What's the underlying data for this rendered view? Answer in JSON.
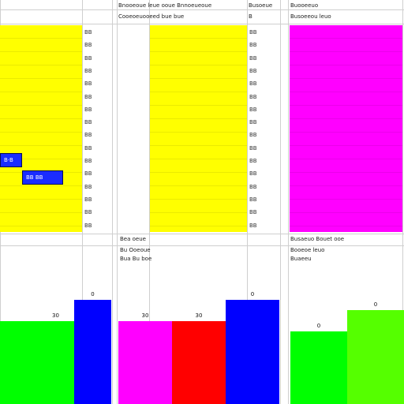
{
  "headers": {
    "col_b": "Bnooeoue leue ooue Bnnoeueoue",
    "col_b_sub": "Cooeoeuooeed bue bue",
    "col_c": "Busoeue",
    "col_c_sub": "B",
    "col_d": "Buooeeuo",
    "col_d_sub": "Busoeeou leuo"
  },
  "row_labels_left": [
    "BB",
    "BB",
    "BB",
    "BB",
    "BB",
    "BB",
    "BB",
    "BB",
    "BB",
    "BB",
    "BB",
    "BB",
    "BB",
    "BB",
    "BB",
    "BB"
  ],
  "row_labels_mid": [
    "BB",
    "BB",
    "BB",
    "BB",
    "BB",
    "BB",
    "BB",
    "BB",
    "BB",
    "BB",
    "BB",
    "BB",
    "BB",
    "BB",
    "BB",
    "BB"
  ],
  "tooltips": {
    "a": "B·B",
    "b": "BB BB"
  },
  "sections": {
    "mid_title_1": "Bea oeue",
    "mid_title_2": "Bu Ooeoue",
    "mid_title_3": "Bua Bu boe",
    "right_title_1": "Busaeuo Bouet ooe",
    "right_title_2": "Booeoe leuo",
    "right_title_3": "Buaeeu"
  },
  "colors": {
    "yellow": "#ffff00",
    "magenta": "#ff00ff",
    "green": "#00ff00",
    "blue": "#0000ff",
    "red": "#ff0000",
    "lime": "#55ff00"
  },
  "chart_data": [
    {
      "type": "bar",
      "categories": [
        "",
        "",
        ""
      ],
      "series": [
        {
          "values": [
            40,
            40,
            50
          ]
        }
      ],
      "data_labels": [
        "",
        "30",
        "0"
      ],
      "colors": [
        "#00ff00",
        "#00ff00",
        "#0000ff"
      ],
      "ylim": [
        0,
        60
      ],
      "title": "",
      "xlabel": "",
      "ylabel": ""
    },
    {
      "type": "bar",
      "categories": [
        "",
        "",
        ""
      ],
      "series": [
        {
          "values": [
            40,
            40,
            50
          ]
        }
      ],
      "data_labels": [
        "30",
        "30",
        "0"
      ],
      "colors": [
        "#ff00ff",
        "#ff0000",
        "#0000ff"
      ],
      "ylim": [
        0,
        60
      ],
      "title": "",
      "xlabel": "",
      "ylabel": ""
    },
    {
      "type": "bar",
      "categories": [
        "",
        ""
      ],
      "series": [
        {
          "values": [
            35,
            45
          ]
        }
      ],
      "data_labels": [
        "0",
        "0"
      ],
      "colors": [
        "#00ff00",
        "#55ff00"
      ],
      "ylim": [
        0,
        60
      ],
      "title": "",
      "xlabel": "",
      "ylabel": ""
    }
  ]
}
